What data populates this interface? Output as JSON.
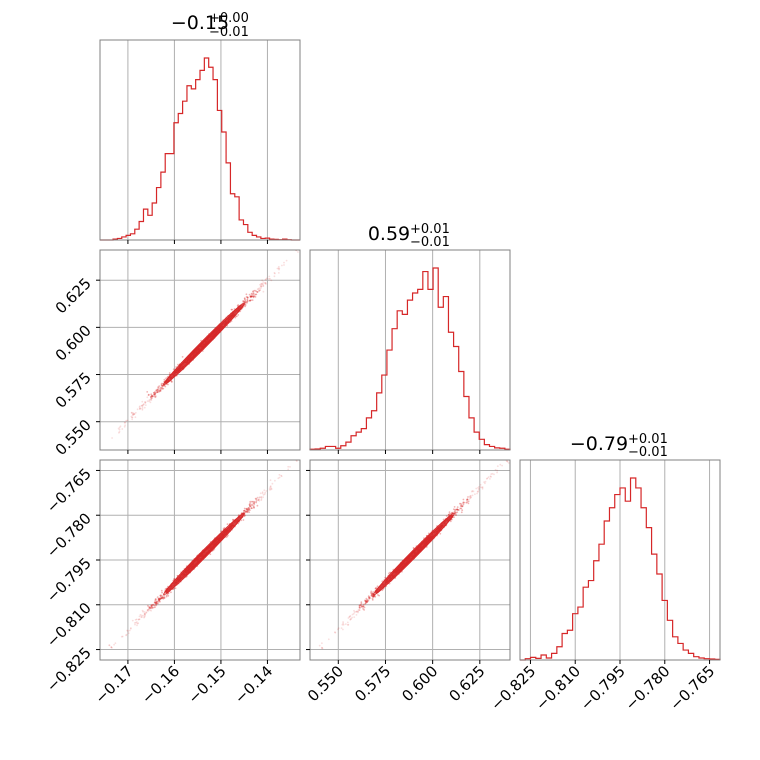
{
  "chart_data": {
    "type": "corner",
    "color": "#d62728",
    "parameters": [
      {
        "median": "−0.15",
        "plus": "+0.00",
        "minus": "−0.01",
        "xlim": [
          -0.176,
          -0.133
        ],
        "ticks": [
          -0.17,
          -0.16,
          -0.15,
          -0.14
        ],
        "tick_labels": [
          "−0.17",
          "−0.16",
          "−0.15",
          "−0.14"
        ]
      },
      {
        "median": "0.59",
        "plus": "+0.01",
        "minus": "−0.01",
        "xlim": [
          0.535,
          0.641
        ],
        "ticks": [
          0.55,
          0.575,
          0.6,
          0.625
        ],
        "tick_labels": [
          "0.550",
          "0.575",
          "0.600",
          "0.625"
        ]
      },
      {
        "median": "−0.79",
        "plus": "+0.01",
        "minus": "−0.01",
        "xlim": [
          -0.8285,
          -0.7615
        ],
        "ticks": [
          -0.825,
          -0.81,
          -0.795,
          -0.78,
          -0.765
        ],
        "tick_labels": [
          "−0.825",
          "−0.810",
          "−0.795",
          "−0.780",
          "−0.765"
        ]
      }
    ],
    "histograms": [
      {
        "x_start": -0.176,
        "x_end": -0.133,
        "values": [
          0,
          0,
          0,
          0.3,
          0.5,
          1,
          1.5,
          2,
          3.5,
          6,
          10,
          8,
          12,
          17,
          22,
          28,
          28,
          38,
          41,
          45,
          50,
          49,
          52,
          55,
          59,
          56,
          52,
          42,
          35,
          25,
          15,
          14,
          6.5,
          5,
          2.5,
          1.5,
          1,
          0.5,
          0.6,
          0.3,
          0.2,
          0.1,
          0.3,
          0.1,
          0,
          0
        ]
      },
      {
        "x_start": 0.535,
        "x_end": 0.641,
        "values": [
          0.2,
          0.3,
          0.5,
          1,
          1,
          0.5,
          1.2,
          2.2,
          4,
          5,
          6,
          9,
          11,
          16,
          21,
          28,
          34,
          39,
          38,
          42,
          44,
          45,
          50,
          45,
          51,
          40,
          43,
          33,
          29,
          22,
          15,
          9,
          5,
          3,
          1.5,
          1,
          0.6,
          0.5,
          0.2
        ]
      },
      {
        "x_start": -0.8285,
        "x_end": -0.7615,
        "values": [
          0,
          0.4,
          0.8,
          0.5,
          1.5,
          0.6,
          2,
          4,
          8,
          9,
          14,
          16,
          22,
          24,
          30,
          35,
          42,
          46,
          50,
          52,
          48,
          55,
          52,
          46,
          40,
          32,
          26,
          18,
          12,
          7,
          5,
          3,
          2,
          1,
          0.6,
          0.4,
          0.3,
          0.2
        ]
      }
    ],
    "scatter_pairs": [
      {
        "x_param": 0,
        "y_param": 1
      },
      {
        "x_param": 0,
        "y_param": 2
      },
      {
        "x_param": 1,
        "y_param": 2
      }
    ]
  }
}
